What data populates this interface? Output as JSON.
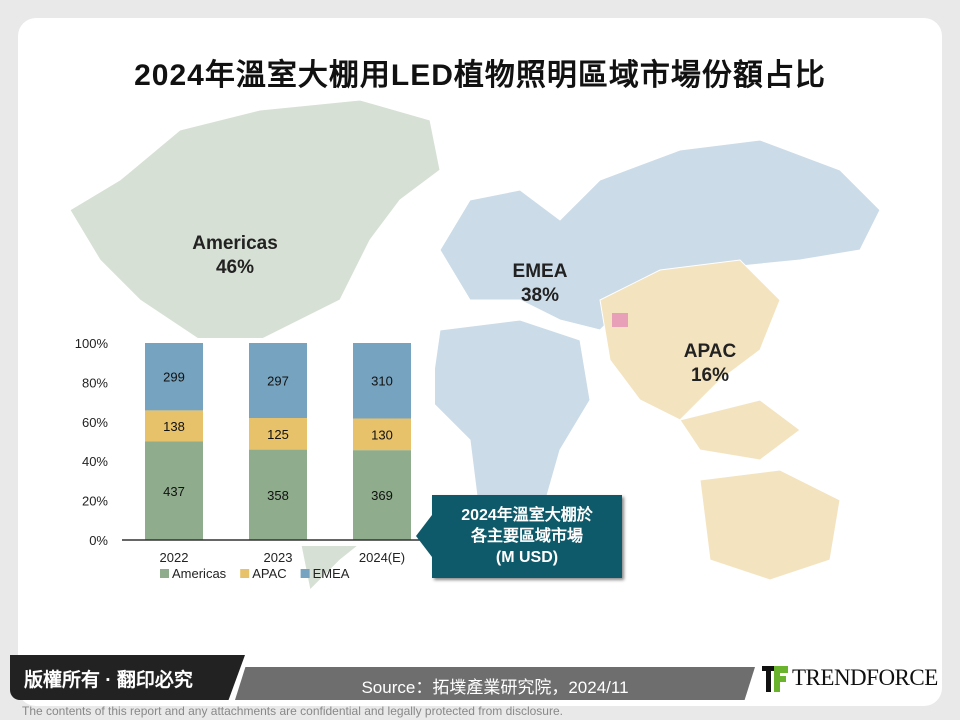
{
  "title": "2024年溫室大棚用LED植物照明區域市場份額占比",
  "regions": [
    {
      "name": "Americas",
      "share": "46%"
    },
    {
      "name": "EMEA",
      "share": "38%"
    },
    {
      "name": "APAC",
      "share": "16%"
    }
  ],
  "colors": {
    "Americas": "#8fac8c",
    "APAC": "#e8c26a",
    "EMEA": "#76a3bf",
    "callout": "#0e5a6a"
  },
  "callout": {
    "line1": "2024年溫室大棚於",
    "line2": "各主要區域市場",
    "line3": "(M USD)"
  },
  "chart_data": {
    "type": "bar",
    "stacked": "percent",
    "categories": [
      "2022",
      "2023",
      "2024(E)"
    ],
    "series": [
      {
        "name": "Americas",
        "values": [
          437,
          358,
          369
        ]
      },
      {
        "name": "APAC",
        "values": [
          138,
          125,
          130
        ]
      },
      {
        "name": "EMEA",
        "values": [
          299,
          297,
          310
        ]
      }
    ],
    "yticks": [
      "0%",
      "20%",
      "40%",
      "60%",
      "80%",
      "100%"
    ],
    "ylim": [
      0,
      100
    ],
    "legend": "bottom",
    "grid": false
  },
  "footer": {
    "copyright": "版權所有 · 翻印必究",
    "source": "Source：拓墣產業研究院，2024/11",
    "brand": "TRENDFORCE",
    "disclaimer": "The contents of this report and any attachments are confidential and legally protected from disclosure."
  }
}
